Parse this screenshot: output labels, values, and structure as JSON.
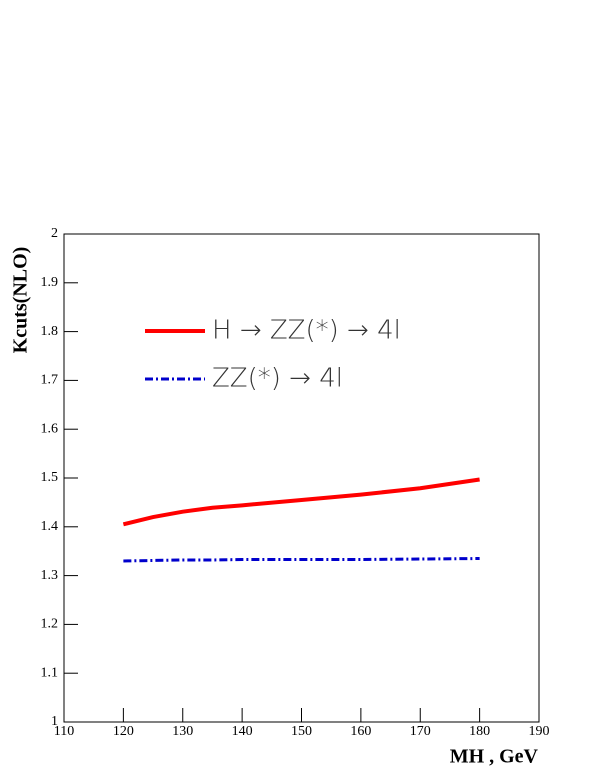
{
  "chart_data": {
    "type": "line",
    "x_label": "MH , GeV",
    "y_label": "Kcuts(NLO)",
    "x": [
      120,
      125,
      130,
      135,
      140,
      150,
      160,
      170,
      180
    ],
    "series": [
      {
        "name": "H → ZZ(*) → 4l",
        "color": "#ff0000",
        "values": [
          1.405,
          1.42,
          1.431,
          1.439,
          1.444,
          1.455,
          1.466,
          1.479,
          1.497
        ]
      },
      {
        "name": "ZZ(*) → 4l",
        "color": "#0000cc",
        "values": [
          1.33,
          1.331,
          1.332,
          1.332,
          1.333,
          1.333,
          1.333,
          1.334,
          1.335
        ]
      }
    ],
    "xlim": [
      110,
      190
    ],
    "xticks": [
      110,
      120,
      130,
      140,
      150,
      160,
      170,
      180,
      190
    ],
    "ylim": [
      1,
      2
    ],
    "yticks": [
      1,
      1.1,
      1.2,
      1.3,
      1.4,
      1.5,
      1.6,
      1.7,
      1.8,
      1.9,
      2
    ]
  }
}
